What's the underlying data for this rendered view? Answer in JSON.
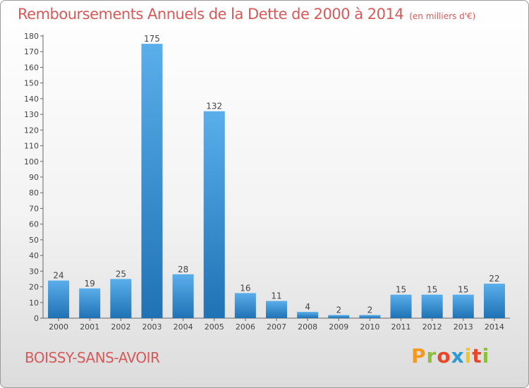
{
  "header": {
    "title": "Remboursements Annuels de la Dette de 2000 à 2014",
    "unit": "(en milliers d'€)"
  },
  "footer": {
    "place": "BOISSY-SANS-AVOIR",
    "logo_letters": [
      "P",
      "r",
      "o",
      "x",
      "i",
      "t",
      "i"
    ],
    "logo_colors": [
      "#f39a1e",
      "#8bbf3c",
      "#e8462a",
      "#2d9ad8",
      "#f2c61b",
      "#e8462a",
      "#8bbf3c"
    ]
  },
  "colors": {
    "bar_light": "#5aaeea",
    "bar_dark": "#1f72b4",
    "title": "#d65a5a"
  },
  "chart_data": {
    "type": "bar",
    "title": "Remboursements Annuels de la Dette de 2000 à 2014",
    "categories": [
      "2000",
      "2001",
      "2002",
      "2003",
      "2004",
      "2005",
      "2006",
      "2007",
      "2008",
      "2009",
      "2010",
      "2011",
      "2012",
      "2013",
      "2014"
    ],
    "values": [
      24,
      19,
      25,
      175,
      28,
      132,
      16,
      11,
      4,
      2,
      2,
      15,
      15,
      15,
      22
    ],
    "ylim": [
      0,
      180
    ],
    "yticks": [
      0,
      10,
      20,
      30,
      40,
      50,
      60,
      70,
      80,
      90,
      100,
      110,
      120,
      130,
      140,
      150,
      160,
      170,
      180
    ],
    "grid": false,
    "xlabel": "",
    "ylabel": ""
  }
}
